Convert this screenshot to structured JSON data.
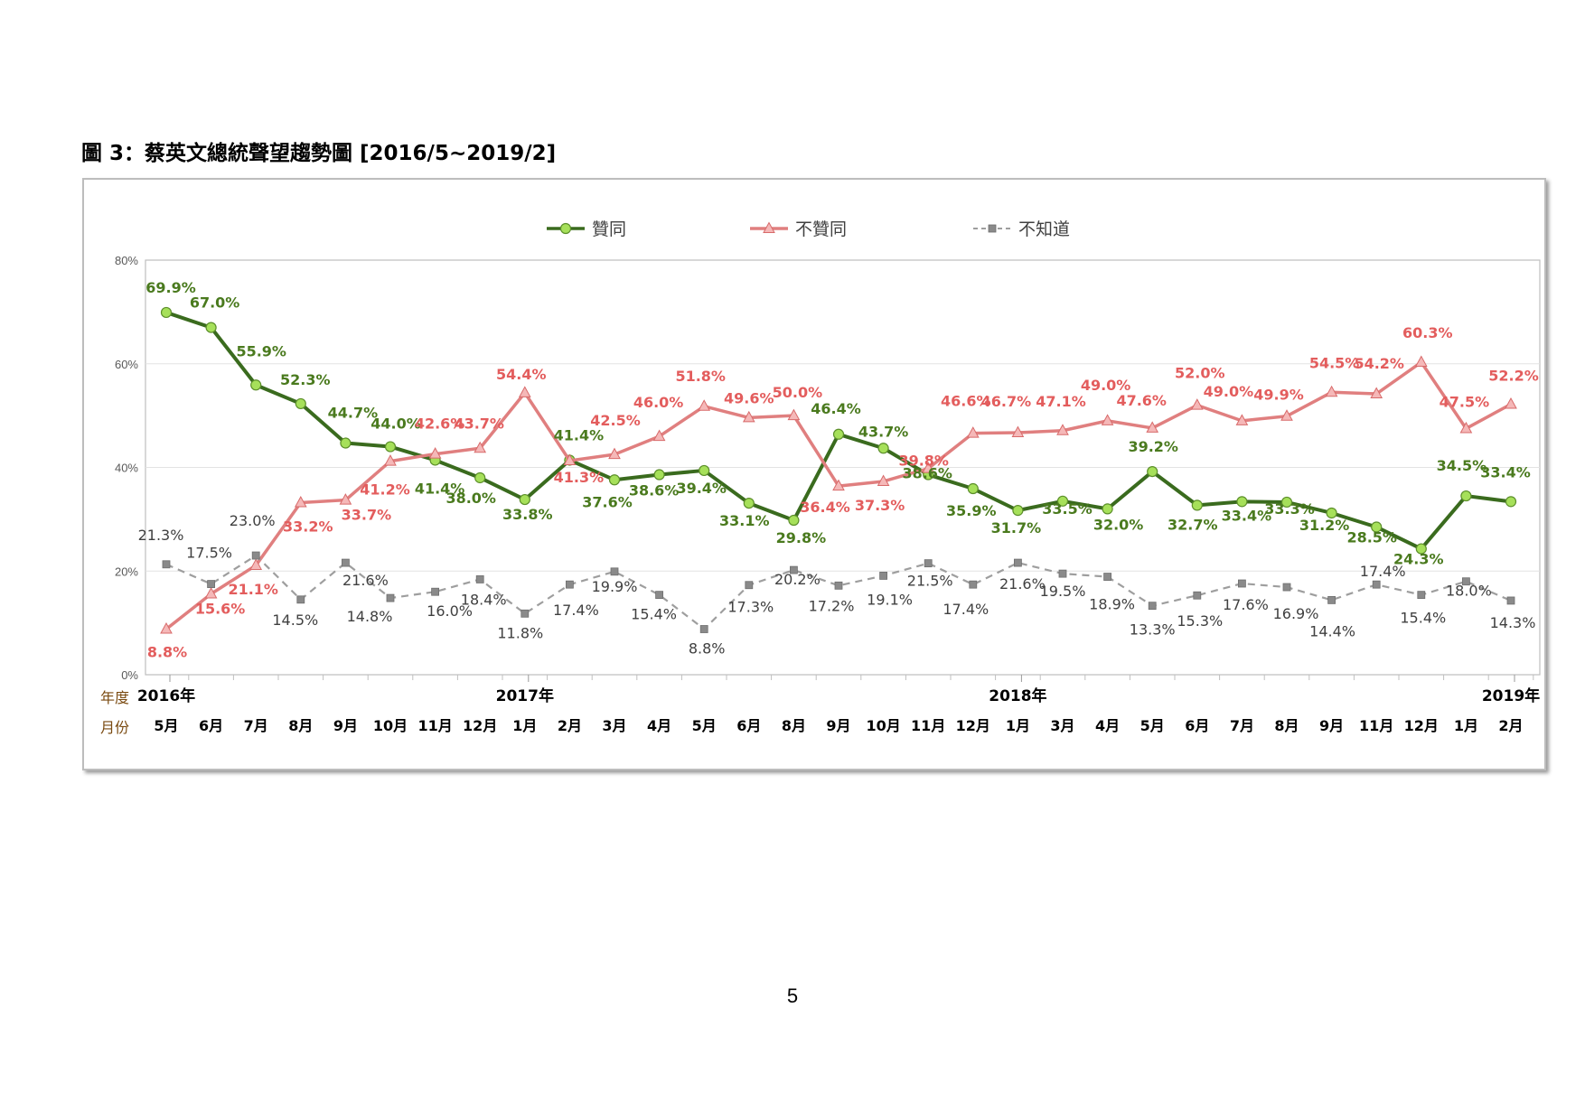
{
  "caption": "圖 3：蔡英文總統聲望趨勢圖  [2016/5~2019/2]",
  "page_number": "5",
  "colors": {
    "approve": "#3a6b1e",
    "approve_marker": "#a6e05a",
    "disapprove": "#e07f7f",
    "disapprove_marker": "#f5b8b8",
    "unknown": "#9e9e9e",
    "unknown_marker": "#8a8a8a",
    "approve_label": "#4a7a1e",
    "disapprove_label": "#e35d5d",
    "unknown_label": "#404040",
    "axis_label": "#7a4a10"
  },
  "chart_data": {
    "type": "line",
    "title": "",
    "xlabel": "",
    "ylabel": "",
    "ylim": [
      0,
      80
    ],
    "y_ticks": [
      "0%",
      "20%",
      "40%",
      "60%",
      "80%"
    ],
    "grid": "horizontal",
    "legend_position": "top",
    "row_labels": {
      "year": "年度",
      "month": "月份"
    },
    "years": [
      {
        "label": "2016年",
        "index": 0
      },
      {
        "label": "2017年",
        "index": 8
      },
      {
        "label": "2018年",
        "index": 19
      },
      {
        "label": "2019年",
        "index": 30
      }
    ],
    "categories": [
      "5月",
      "6月",
      "7月",
      "8月",
      "9月",
      "10月",
      "11月",
      "12月",
      "1月",
      "2月",
      "3月",
      "4月",
      "5月",
      "6月",
      "8月",
      "9月",
      "10月",
      "11月",
      "12月",
      "1月",
      "3月",
      "4月",
      "5月",
      "6月",
      "7月",
      "8月",
      "9月",
      "11月",
      "12月",
      "1月",
      "2月"
    ],
    "series": [
      {
        "name": "贊同",
        "key": "approve",
        "values": [
          69.9,
          67.0,
          55.9,
          52.3,
          44.7,
          44.0,
          41.4,
          38.0,
          33.8,
          41.4,
          37.6,
          38.6,
          39.4,
          33.1,
          29.8,
          46.4,
          43.7,
          38.6,
          35.9,
          31.7,
          33.5,
          32.0,
          39.2,
          32.7,
          33.4,
          33.3,
          31.2,
          28.5,
          24.3,
          34.5,
          33.4
        ],
        "labels": [
          "69.9%",
          "67.0%",
          "55.9%",
          "52.3%",
          "44.7%",
          "44.0%",
          "41.4%",
          "38.0%",
          "33.8%",
          "41.4%",
          "37.6%",
          "38.6%",
          "39.4%",
          "33.1%",
          "29.8%",
          "46.4%",
          "43.7%",
          "38.6%",
          "35.9%",
          "31.7%",
          "33.5%",
          "32.0%",
          "39.2%",
          "32.7%",
          "33.4%",
          "33.3%",
          "31.2%",
          "28.5%",
          "24.3%",
          "34.5%",
          "33.4%"
        ]
      },
      {
        "name": "不贊同",
        "key": "disapprove",
        "values": [
          8.8,
          15.6,
          21.1,
          33.2,
          33.7,
          41.2,
          42.6,
          43.7,
          54.4,
          41.3,
          42.5,
          46.0,
          51.8,
          49.6,
          50.0,
          36.4,
          37.3,
          39.8,
          46.6,
          46.7,
          47.1,
          49.0,
          47.6,
          52.0,
          49.0,
          49.9,
          54.5,
          54.2,
          60.3,
          47.5,
          52.2
        ],
        "labels": [
          "8.8%",
          "15.6%",
          "21.1%",
          "33.2%",
          "33.7%",
          "41.2%",
          "42.6%",
          "43.7%",
          "54.4%",
          "41.3%",
          "42.5%",
          "46.0%",
          "51.8%",
          "49.6%",
          "50.0%",
          "36.4%",
          "37.3%",
          "39.8%",
          "46.6%",
          "46.7%",
          "47.1%",
          "49.0%",
          "47.6%",
          "52.0%",
          "49.0%",
          "49.9%",
          "54.5%",
          "54.2%",
          "60.3%",
          "47.5%",
          "52.2%"
        ]
      },
      {
        "name": "不知道",
        "key": "unknown",
        "values": [
          21.3,
          17.5,
          23.0,
          14.5,
          21.6,
          14.8,
          16.0,
          18.4,
          11.8,
          17.4,
          19.9,
          15.4,
          8.8,
          17.3,
          20.2,
          17.2,
          19.1,
          21.5,
          17.4,
          21.6,
          19.5,
          18.9,
          13.3,
          15.3,
          17.6,
          16.9,
          14.4,
          17.4,
          15.4,
          18.0,
          14.3
        ],
        "labels": [
          "21.3%",
          "17.5%",
          "23.0%",
          "14.5%",
          "21.6%",
          "14.8%",
          "16.0%",
          "18.4%",
          "11.8%",
          "17.4%",
          "19.9%",
          "15.4%",
          "8.8%",
          "17.3%",
          "20.2%",
          "17.2%",
          "19.1%",
          "21.5%",
          "17.4%",
          "21.6%",
          "19.5%",
          "18.9%",
          "13.3%",
          "15.3%",
          "17.6%",
          "16.9%",
          "14.4%",
          "17.4%",
          "15.4%",
          "18.0%",
          "14.3%"
        ]
      }
    ]
  }
}
